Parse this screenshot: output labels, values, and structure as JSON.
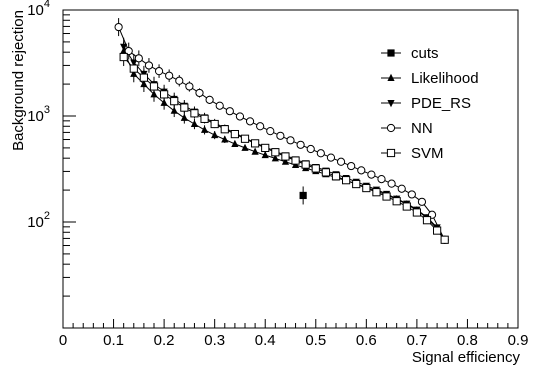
{
  "chart_data": {
    "type": "scatter",
    "xlabel": "Signal efficiency",
    "ylabel": "Background rejection",
    "xlim": [
      0,
      0.9
    ],
    "ylim": [
      10,
      10000
    ],
    "y_scale": "log",
    "grid": false,
    "legend_position": "top-right",
    "x_ticks": [
      "0",
      "0.1",
      "0.2",
      "0.3",
      "0.4",
      "0.5",
      "0.6",
      "0.7",
      "0.8",
      "0.9"
    ],
    "y_ticks": [
      {
        "base": "10",
        "exp": "2"
      },
      {
        "base": "10",
        "exp": "3"
      },
      {
        "base": "10",
        "exp": "4"
      }
    ],
    "series": [
      {
        "name": "cuts",
        "marker": "filled-square",
        "x": [
          0.475
        ],
        "y": [
          178
        ]
      },
      {
        "name": "Likelihood",
        "marker": "filled-triangle-up",
        "x": [
          0.12,
          0.14,
          0.16,
          0.18,
          0.2,
          0.22,
          0.24,
          0.26,
          0.28,
          0.3,
          0.32,
          0.34,
          0.36,
          0.38,
          0.4,
          0.42,
          0.44,
          0.46,
          0.48,
          0.5,
          0.52,
          0.54,
          0.56,
          0.58,
          0.6,
          0.62,
          0.64,
          0.66,
          0.68,
          0.7,
          0.72,
          0.74,
          0.755
        ],
        "y": [
          4100,
          2500,
          2000,
          1600,
          1330,
          1120,
          960,
          840,
          740,
          660,
          600,
          545,
          500,
          460,
          428,
          398,
          370,
          345,
          322,
          302,
          282,
          263,
          246,
          229,
          212,
          196,
          180,
          164,
          147,
          129,
          109,
          86,
          68
        ]
      },
      {
        "name": "PDE_RS",
        "marker": "filled-triangle-down",
        "x": [
          0.12,
          0.14,
          0.16,
          0.18,
          0.2,
          0.22,
          0.24,
          0.26,
          0.28,
          0.3,
          0.32,
          0.34,
          0.36,
          0.38,
          0.4,
          0.42,
          0.44,
          0.46,
          0.48,
          0.5,
          0.52,
          0.54,
          0.56,
          0.58,
          0.6,
          0.62,
          0.64,
          0.66,
          0.68,
          0.7,
          0.72,
          0.74,
          0.755
        ],
        "y": [
          4500,
          3200,
          2500,
          2000,
          1700,
          1450,
          1250,
          1100,
          970,
          860,
          770,
          690,
          620,
          560,
          510,
          465,
          425,
          390,
          358,
          330,
          305,
          282,
          260,
          240,
          220,
          202,
          184,
          166,
          149,
          131,
          111,
          89,
          68
        ]
      },
      {
        "name": "NN",
        "marker": "open-circle",
        "x": [
          0.11,
          0.13,
          0.15,
          0.17,
          0.19,
          0.21,
          0.23,
          0.25,
          0.27,
          0.29,
          0.31,
          0.33,
          0.35,
          0.37,
          0.39,
          0.41,
          0.43,
          0.45,
          0.47,
          0.49,
          0.51,
          0.53,
          0.55,
          0.57,
          0.59,
          0.61,
          0.63,
          0.65,
          0.67,
          0.69,
          0.71,
          0.73,
          0.755
        ],
        "y": [
          6900,
          4100,
          3500,
          3000,
          2650,
          2400,
          2150,
          1900,
          1650,
          1420,
          1250,
          1110,
          990,
          890,
          800,
          720,
          650,
          590,
          535,
          488,
          445,
          405,
          370,
          337,
          307,
          280,
          254,
          230,
          206,
          182,
          155,
          117,
          68
        ]
      },
      {
        "name": "SVM",
        "marker": "open-square",
        "x": [
          0.12,
          0.14,
          0.16,
          0.18,
          0.2,
          0.22,
          0.24,
          0.26,
          0.28,
          0.3,
          0.32,
          0.34,
          0.36,
          0.38,
          0.4,
          0.42,
          0.44,
          0.46,
          0.48,
          0.5,
          0.52,
          0.54,
          0.56,
          0.58,
          0.6,
          0.62,
          0.64,
          0.66,
          0.68,
          0.7,
          0.72,
          0.74,
          0.755
        ],
        "y": [
          3600,
          2800,
          2300,
          1900,
          1600,
          1380,
          1200,
          1060,
          940,
          840,
          750,
          675,
          610,
          552,
          500,
          455,
          415,
          380,
          348,
          320,
          294,
          270,
          248,
          228,
          209,
          191,
          174,
          157,
          140,
          123,
          104,
          83,
          68
        ]
      }
    ]
  }
}
